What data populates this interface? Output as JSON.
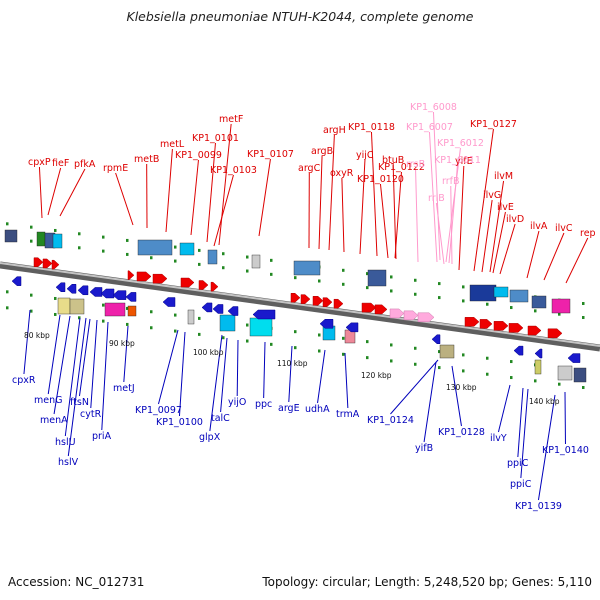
{
  "title": "Klebsiella pneumoniae NTUH-K2044, complete genome",
  "footer": {
    "accession": "Accession: NC_012731",
    "summary": "Topology: circular; Length: 5,248,520 bp; Genes: 5,110"
  },
  "colors": {
    "forward_gene_label": "#dd0000",
    "rna_label": "#ff99cc",
    "reverse_gene_label": "#0000bb",
    "backbone": "#888888",
    "tick": "#228822"
  },
  "kbp_ticks": [
    "80 kbp",
    "90 kbp",
    "100 kbp",
    "110 kbp",
    "120 kbp",
    "130 kbp",
    "140 kbp"
  ],
  "forward_genes": [
    "cpxP",
    "fieF",
    "pfkA",
    "rpmE",
    "metB",
    "metL",
    "KP1_0099",
    "KP1_0101",
    "metF",
    "KP1_0103",
    "KP1_0107",
    "argC",
    "argB",
    "argH",
    "oxyR",
    "yijC",
    "KP1_0118",
    "KP1_0120",
    "KP1_0122",
    "btuB",
    "yifE",
    "KP1_0127",
    "ilvG",
    "ilvM",
    "ilvE",
    "ilvD",
    "ilvA",
    "ilvC",
    "rep"
  ],
  "rna_genes": [
    "KP1_6008",
    "KP1_6007",
    "KP1_6012",
    "rrsB",
    "KP1_6011",
    "rrlB",
    "rrfB"
  ],
  "reverse_genes": [
    "cpxR",
    "menG",
    "menA",
    "hslU",
    "hslV",
    "ftsN",
    "cytR",
    "priA",
    "metJ",
    "KP1_0097",
    "KP1_0100",
    "glpX",
    "talC",
    "yijO",
    "ppc",
    "argE",
    "udhA",
    "trmA",
    "KP1_0124",
    "yifB",
    "KP1_0128",
    "ilvY",
    "ppiC",
    "KP1_0140",
    "KP1_0139"
  ]
}
